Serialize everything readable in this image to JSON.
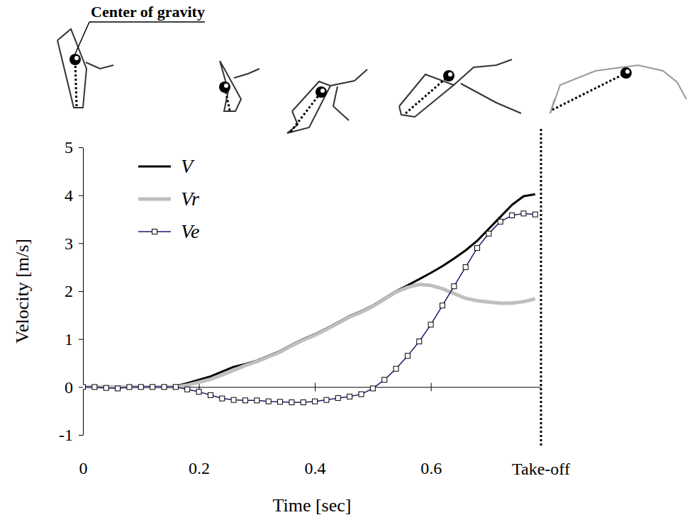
{
  "chart_data": {
    "type": "line",
    "x_label": "Time [sec]",
    "y_label": "Velocity [m/s]",
    "x": [
      0,
      0.02,
      0.04,
      0.06,
      0.08,
      0.1,
      0.12,
      0.14,
      0.16,
      0.18,
      0.2,
      0.22,
      0.24,
      0.26,
      0.28,
      0.3,
      0.32,
      0.34,
      0.36,
      0.38,
      0.4,
      0.42,
      0.44,
      0.46,
      0.48,
      0.5,
      0.52,
      0.54,
      0.56,
      0.58,
      0.6,
      0.62,
      0.64,
      0.66,
      0.68,
      0.7,
      0.72,
      0.74,
      0.76,
      0.78
    ],
    "series": [
      {
        "name": "V",
        "color": "#000000",
        "line_style": "solid",
        "values": [
          0,
          0,
          0,
          0,
          0,
          0,
          0,
          0,
          0.02,
          0.08,
          0.15,
          0.22,
          0.32,
          0.42,
          0.48,
          0.55,
          0.65,
          0.75,
          0.88,
          1.0,
          1.1,
          1.22,
          1.35,
          1.48,
          1.58,
          1.7,
          1.85,
          2.0,
          2.12,
          2.25,
          2.38,
          2.52,
          2.68,
          2.85,
          3.05,
          3.3,
          3.55,
          3.8,
          3.98,
          4.02
        ]
      },
      {
        "name": "Vr",
        "color": "#bfbfbf",
        "line_style": "solid",
        "values": [
          0,
          0,
          0,
          0,
          0,
          0,
          0,
          0,
          0,
          0.04,
          0.1,
          0.16,
          0.25,
          0.35,
          0.45,
          0.53,
          0.63,
          0.73,
          0.86,
          0.98,
          1.08,
          1.2,
          1.33,
          1.46,
          1.56,
          1.68,
          1.83,
          1.98,
          2.08,
          2.14,
          2.12,
          2.05,
          1.95,
          1.85,
          1.8,
          1.77,
          1.75,
          1.75,
          1.78,
          1.84
        ]
      },
      {
        "name": "Ve",
        "color": "#1a1a6e",
        "line_style": "solid",
        "marker": "square",
        "values": [
          0,
          0,
          -0.02,
          -0.03,
          0,
          0,
          0,
          0,
          0,
          -0.05,
          -0.1,
          -0.17,
          -0.24,
          -0.27,
          -0.28,
          -0.28,
          -0.3,
          -0.31,
          -0.32,
          -0.32,
          -0.3,
          -0.27,
          -0.23,
          -0.2,
          -0.15,
          -0.03,
          0.15,
          0.38,
          0.65,
          0.95,
          1.3,
          1.7,
          2.1,
          2.5,
          2.9,
          3.2,
          3.45,
          3.58,
          3.62,
          3.6
        ]
      }
    ],
    "xlim": [
      0,
      0.79
    ],
    "ylim": [
      -1,
      5
    ],
    "xticks": [
      0,
      0.2,
      0.4,
      0.6
    ],
    "yticks": [
      -1,
      0,
      1,
      2,
      3,
      4,
      5
    ],
    "grid": false,
    "legend": "upper left",
    "annotations": [
      {
        "text": "Take-off",
        "x": 0.79
      },
      {
        "text": "Center of gravity"
      }
    ]
  }
}
